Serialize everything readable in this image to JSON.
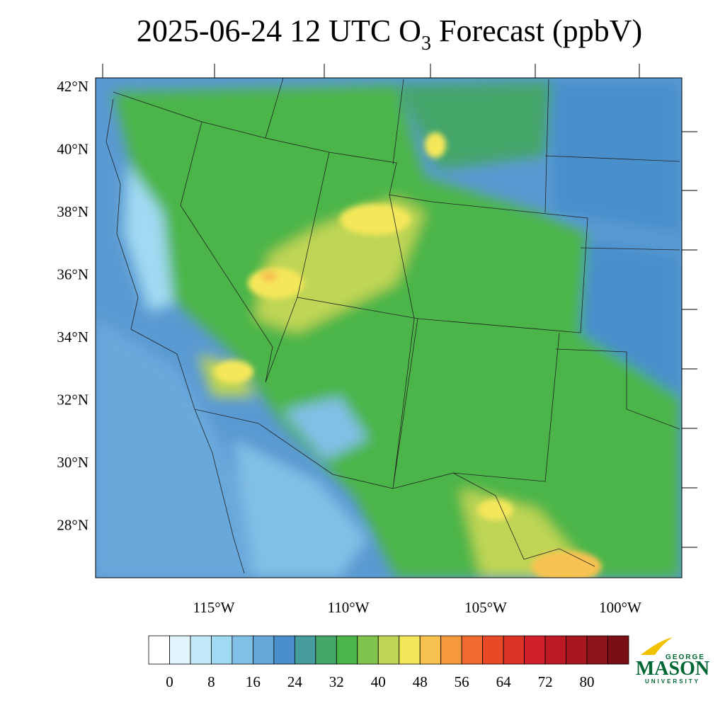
{
  "header": {
    "title": [
      "2025-06-24 12 UTC O",
      "3",
      " Forecast (ppbV)"
    ]
  },
  "map": {
    "lat_labels": [
      "42°N",
      "40°N",
      "38°N",
      "36°N",
      "34°N",
      "32°N",
      "30°N",
      "28°N"
    ],
    "lon_labels": [
      "115°W",
      "110°W",
      "105°W",
      "100°W"
    ]
  },
  "colorbar": {
    "colors": [
      "#ffffff",
      "#e1f3fb",
      "#c2e7f7",
      "#a0d9f2",
      "#82bfe6",
      "#66a7da",
      "#4a8fcc",
      "#479c9c",
      "#45a66a",
      "#4bb54a",
      "#80c34d",
      "#bfd555",
      "#f5e75a",
      "#f8c251",
      "#f79a3e",
      "#f26a2d",
      "#e84a28",
      "#dc3327",
      "#d1202a",
      "#bd1a24",
      "#a8171e",
      "#8c141a"
    ],
    "step": 4,
    "labels": [
      0,
      8,
      16,
      24,
      32,
      40,
      48,
      56,
      64,
      72,
      80
    ]
  },
  "logo": {
    "top": "GEORGE",
    "main": "MASON",
    "bottom": "UNIVERSITY"
  }
}
